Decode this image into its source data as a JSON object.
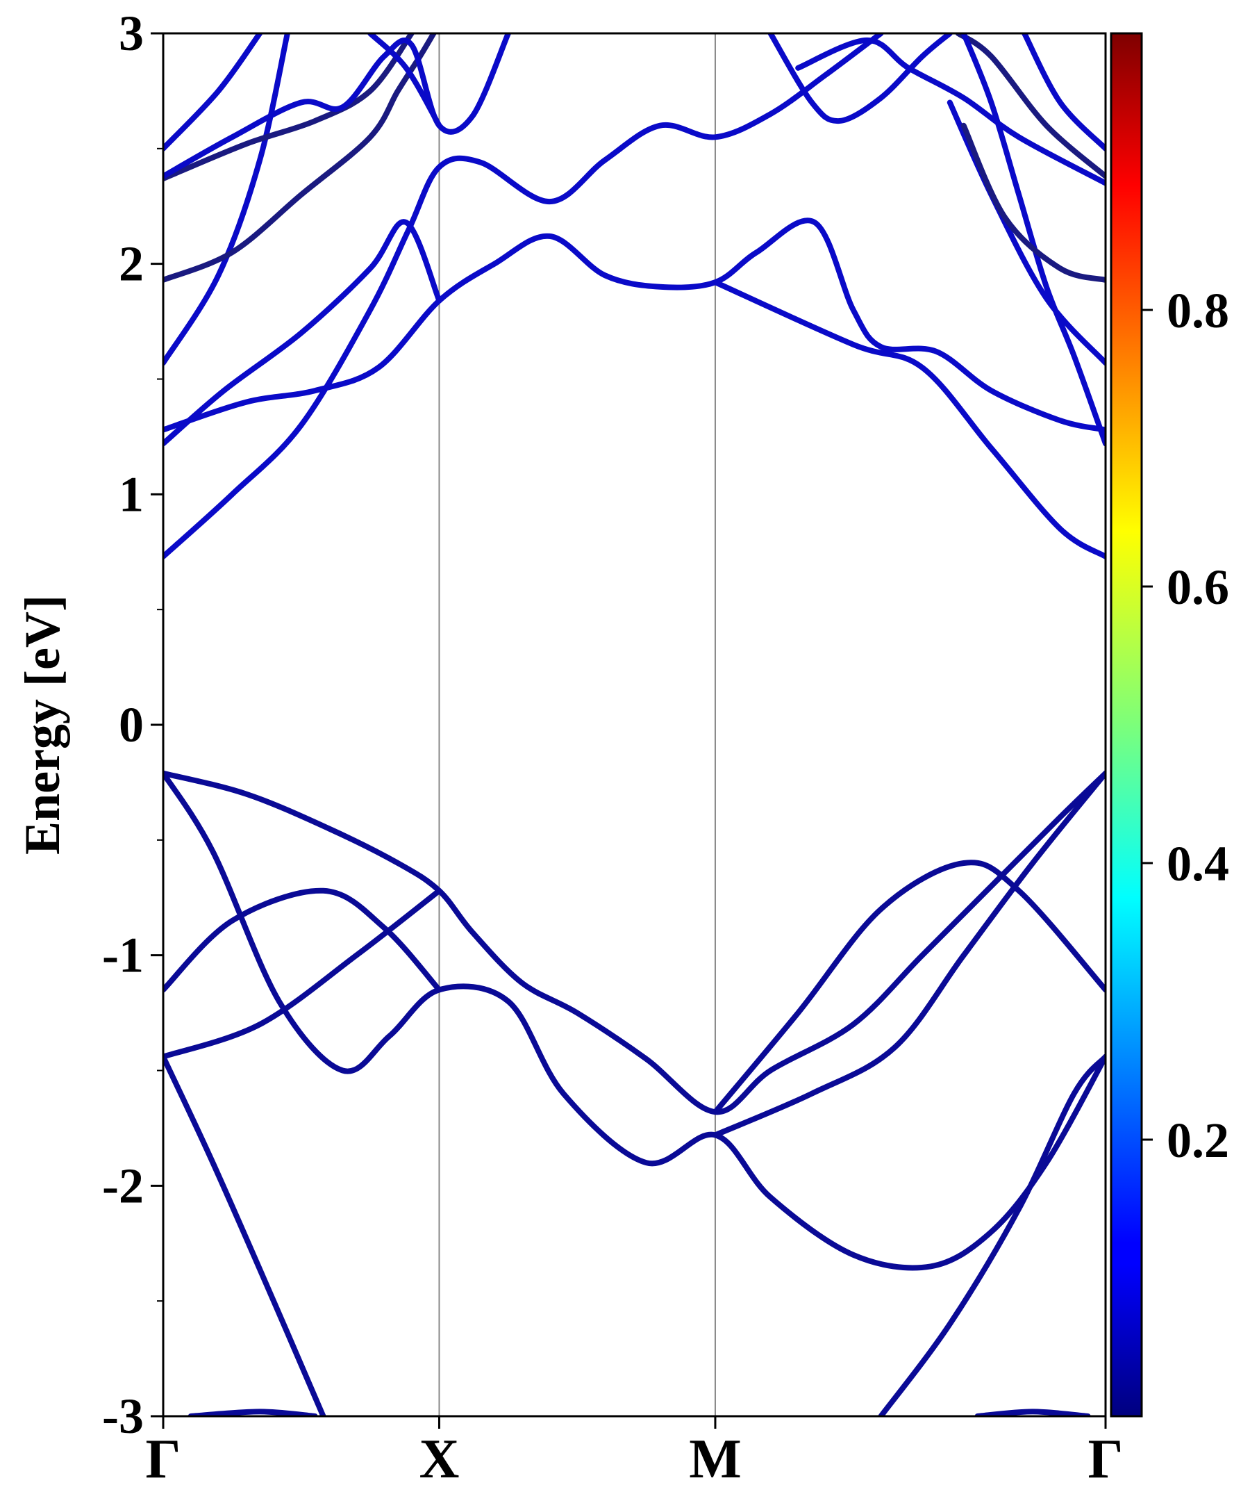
{
  "chart_data": {
    "type": "line",
    "title": "",
    "xlabel": "",
    "ylabel": "Energy [eV]",
    "ylim": [
      -3,
      3
    ],
    "xlim": [
      0,
      3.414
    ],
    "grid": false,
    "legend": "none",
    "x_ticks": [
      {
        "x": 0,
        "label": "Γ"
      },
      {
        "x": 1,
        "label": "X"
      },
      {
        "x": 2,
        "label": "M"
      },
      {
        "x": 3.414,
        "label": "Γ"
      }
    ],
    "y_ticks": [
      {
        "y": 3,
        "label": "3"
      },
      {
        "y": 2,
        "label": "2"
      },
      {
        "y": 1,
        "label": "1"
      },
      {
        "y": 0,
        "label": "0"
      },
      {
        "y": -1,
        "label": "-1"
      },
      {
        "y": -2,
        "label": "-2"
      },
      {
        "y": -3,
        "label": "-3"
      }
    ],
    "y_minor_ticks": [
      2.5,
      1.5,
      0.5,
      -0.5,
      -1.5,
      -2.5
    ],
    "high_symmetry_lines": [
      1,
      2
    ],
    "colorbar": {
      "colormap": "jet",
      "range": [
        0,
        1
      ],
      "ticks": [
        {
          "v": 0.2,
          "label": "0.2"
        },
        {
          "v": 0.4,
          "label": "0.4"
        },
        {
          "v": 0.6,
          "label": "0.6"
        },
        {
          "v": 0.8,
          "label": "0.8"
        }
      ]
    },
    "series": [
      {
        "color": "#0a0ac8",
        "points": [
          [
            0,
            0.73
          ],
          [
            0.25,
            1.0
          ],
          [
            0.5,
            1.3
          ],
          [
            0.75,
            1.8
          ],
          [
            0.89,
            2.15
          ],
          [
            1,
            2.42
          ],
          [
            1.15,
            2.44
          ],
          [
            1.4,
            2.27
          ],
          [
            1.6,
            2.45
          ],
          [
            1.8,
            2.6
          ],
          [
            2,
            2.55
          ],
          [
            2.2,
            2.65
          ],
          [
            2.4,
            2.82
          ],
          [
            2.6,
            3.0
          ]
        ]
      },
      {
        "color": "#0a0ac8",
        "points": [
          [
            0,
            1.28
          ],
          [
            0.3,
            1.4
          ],
          [
            0.55,
            1.45
          ],
          [
            0.78,
            1.55
          ],
          [
            1,
            1.84
          ],
          [
            1.2,
            2.0
          ],
          [
            1.4,
            2.12
          ],
          [
            1.6,
            1.95
          ],
          [
            1.8,
            1.9
          ],
          [
            2,
            1.92
          ],
          [
            2.15,
            2.05
          ],
          [
            2.36,
            2.18
          ],
          [
            2.5,
            1.8
          ],
          [
            2.6,
            1.64
          ],
          [
            2.8,
            1.62
          ],
          [
            3.0,
            1.45
          ],
          [
            3.25,
            1.32
          ],
          [
            3.414,
            1.28
          ]
        ]
      },
      {
        "color": "#0a0ac8",
        "points": [
          [
            0,
            1.22
          ],
          [
            0.22,
            1.45
          ],
          [
            0.5,
            1.7
          ],
          [
            0.75,
            1.98
          ],
          [
            0.88,
            2.18
          ],
          [
            1,
            1.84
          ]
        ]
      },
      {
        "color": "#0a0ac8",
        "points": [
          [
            0,
            1.57
          ],
          [
            0.2,
            1.95
          ],
          [
            0.35,
            2.45
          ],
          [
            0.45,
            3.0
          ]
        ]
      },
      {
        "color": "#1a1a80",
        "points": [
          [
            0,
            1.93
          ],
          [
            0.25,
            2.05
          ],
          [
            0.5,
            2.3
          ],
          [
            0.75,
            2.55
          ],
          [
            0.85,
            2.75
          ],
          [
            0.93,
            2.9
          ],
          [
            0.98,
            3.0
          ]
        ]
      },
      {
        "color": "#1a1a80",
        "points": [
          [
            0,
            2.37
          ],
          [
            0.3,
            2.52
          ],
          [
            0.55,
            2.62
          ],
          [
            0.75,
            2.75
          ],
          [
            0.9,
            3.0
          ]
        ]
      },
      {
        "color": "#0a0ac8",
        "points": [
          [
            0,
            2.38
          ],
          [
            0.25,
            2.55
          ],
          [
            0.5,
            2.7
          ],
          [
            0.65,
            2.68
          ],
          [
            0.8,
            2.9
          ],
          [
            0.9,
            2.95
          ],
          [
            1,
            2.6
          ],
          [
            1.12,
            2.64
          ],
          [
            1.25,
            3.0
          ]
        ]
      },
      {
        "color": "#0a0ac8",
        "points": [
          [
            0,
            2.5
          ],
          [
            0.2,
            2.75
          ],
          [
            0.35,
            3.0
          ]
        ]
      },
      {
        "color": "#0a0ac8",
        "points": [
          [
            0.75,
            3.0
          ],
          [
            0.88,
            2.85
          ],
          [
            1,
            2.6
          ]
        ]
      },
      {
        "color": "#0a0ac8",
        "points": [
          [
            2.2,
            3.0
          ],
          [
            2.35,
            2.7
          ],
          [
            2.45,
            2.62
          ],
          [
            2.6,
            2.72
          ],
          [
            2.75,
            2.9
          ],
          [
            2.85,
            3.0
          ]
        ]
      },
      {
        "color": "#0a0ac8",
        "points": [
          [
            2.3,
            2.85
          ],
          [
            2.55,
            2.97
          ],
          [
            2.7,
            2.85
          ],
          [
            2.9,
            2.72
          ],
          [
            3.1,
            2.55
          ],
          [
            3.414,
            2.35
          ]
        ]
      },
      {
        "color": "#1a1a80",
        "points": [
          [
            2.88,
            3.0
          ],
          [
            3.0,
            2.9
          ],
          [
            3.2,
            2.6
          ],
          [
            3.414,
            2.38
          ]
        ]
      },
      {
        "color": "#0a0ac8",
        "points": [
          [
            3.12,
            3.0
          ],
          [
            3.25,
            2.7
          ],
          [
            3.414,
            2.5
          ]
        ]
      },
      {
        "color": "#0a0ac8",
        "points": [
          [
            2.9,
            3.0
          ],
          [
            3.0,
            2.7
          ],
          [
            3.1,
            2.3
          ],
          [
            3.2,
            1.9
          ],
          [
            3.3,
            1.6
          ],
          [
            3.414,
            1.22
          ]
        ]
      },
      {
        "color": "#0a0ac8",
        "points": [
          [
            2.85,
            2.7
          ],
          [
            3.0,
            2.3
          ],
          [
            3.2,
            1.85
          ],
          [
            3.414,
            1.57
          ]
        ]
      },
      {
        "color": "#1a1a80",
        "points": [
          [
            2.9,
            2.6
          ],
          [
            3.05,
            2.2
          ],
          [
            3.25,
            1.98
          ],
          [
            3.414,
            1.93
          ]
        ]
      },
      {
        "color": "#0a0ac8",
        "points": [
          [
            2,
            1.92
          ],
          [
            2.5,
            1.65
          ],
          [
            2.75,
            1.55
          ],
          [
            3.0,
            1.2
          ],
          [
            3.25,
            0.85
          ],
          [
            3.414,
            0.73
          ]
        ]
      },
      {
        "color": "#0a0a96",
        "points": [
          [
            0,
            -0.21
          ],
          [
            0.3,
            -0.3
          ],
          [
            0.6,
            -0.45
          ],
          [
            0.85,
            -0.6
          ],
          [
            1,
            -0.72
          ],
          [
            1.12,
            -0.9
          ],
          [
            1.3,
            -1.12
          ],
          [
            1.5,
            -1.25
          ],
          [
            1.75,
            -1.45
          ],
          [
            2,
            -1.68
          ],
          [
            2.2,
            -1.5
          ],
          [
            2.5,
            -1.3
          ],
          [
            2.75,
            -1.0
          ],
          [
            3.0,
            -0.7
          ],
          [
            3.25,
            -0.4
          ],
          [
            3.414,
            -0.21
          ]
        ]
      },
      {
        "color": "#0a0a96",
        "points": [
          [
            0,
            -0.21
          ],
          [
            0.18,
            -0.55
          ],
          [
            0.42,
            -1.2
          ],
          [
            0.65,
            -1.5
          ],
          [
            0.82,
            -1.35
          ],
          [
            1,
            -1.15
          ],
          [
            1.25,
            -1.2
          ],
          [
            1.45,
            -1.6
          ],
          [
            1.75,
            -1.9
          ],
          [
            2,
            -1.78
          ],
          [
            2.2,
            -2.05
          ],
          [
            2.5,
            -2.3
          ],
          [
            2.78,
            -2.35
          ],
          [
            3.0,
            -2.2
          ],
          [
            3.2,
            -1.9
          ],
          [
            3.414,
            -1.44
          ]
        ]
      },
      {
        "color": "#0a0a96",
        "points": [
          [
            0,
            -1.15
          ],
          [
            0.25,
            -0.85
          ],
          [
            0.58,
            -0.72
          ],
          [
            0.8,
            -0.88
          ],
          [
            1,
            -1.15
          ]
        ]
      },
      {
        "color": "#0a0a96",
        "points": [
          [
            0,
            -1.44
          ],
          [
            0.35,
            -1.3
          ],
          [
            0.7,
            -1.0
          ],
          [
            1,
            -0.72
          ]
        ]
      },
      {
        "color": "#0a0a96",
        "points": [
          [
            0,
            -1.44
          ],
          [
            0.18,
            -1.9
          ],
          [
            0.4,
            -2.5
          ],
          [
            0.58,
            -3.0
          ]
        ]
      },
      {
        "color": "#0a0a96",
        "points": [
          [
            2,
            -1.68
          ],
          [
            2.3,
            -1.25
          ],
          [
            2.6,
            -0.8
          ],
          [
            2.9,
            -0.6
          ],
          [
            3.1,
            -0.72
          ],
          [
            3.414,
            -1.15
          ]
        ]
      },
      {
        "color": "#0a0a96",
        "points": [
          [
            2,
            -1.78
          ],
          [
            2.35,
            -1.6
          ],
          [
            2.65,
            -1.4
          ],
          [
            2.9,
            -1.0
          ],
          [
            3.15,
            -0.6
          ],
          [
            3.414,
            -0.21
          ]
        ]
      },
      {
        "color": "#0a0a96",
        "points": [
          [
            2.6,
            -3.0
          ],
          [
            2.85,
            -2.6
          ],
          [
            3.1,
            -2.1
          ],
          [
            3.3,
            -1.6
          ],
          [
            3.414,
            -1.44
          ]
        ]
      },
      {
        "color": "#0a0a96",
        "points": [
          [
            0.1,
            -3.0
          ],
          [
            0.35,
            -2.98
          ],
          [
            0.55,
            -3.0
          ]
        ]
      },
      {
        "color": "#0a0a96",
        "points": [
          [
            2.95,
            -3.0
          ],
          [
            3.15,
            -2.98
          ],
          [
            3.35,
            -3.0
          ]
        ]
      }
    ]
  }
}
